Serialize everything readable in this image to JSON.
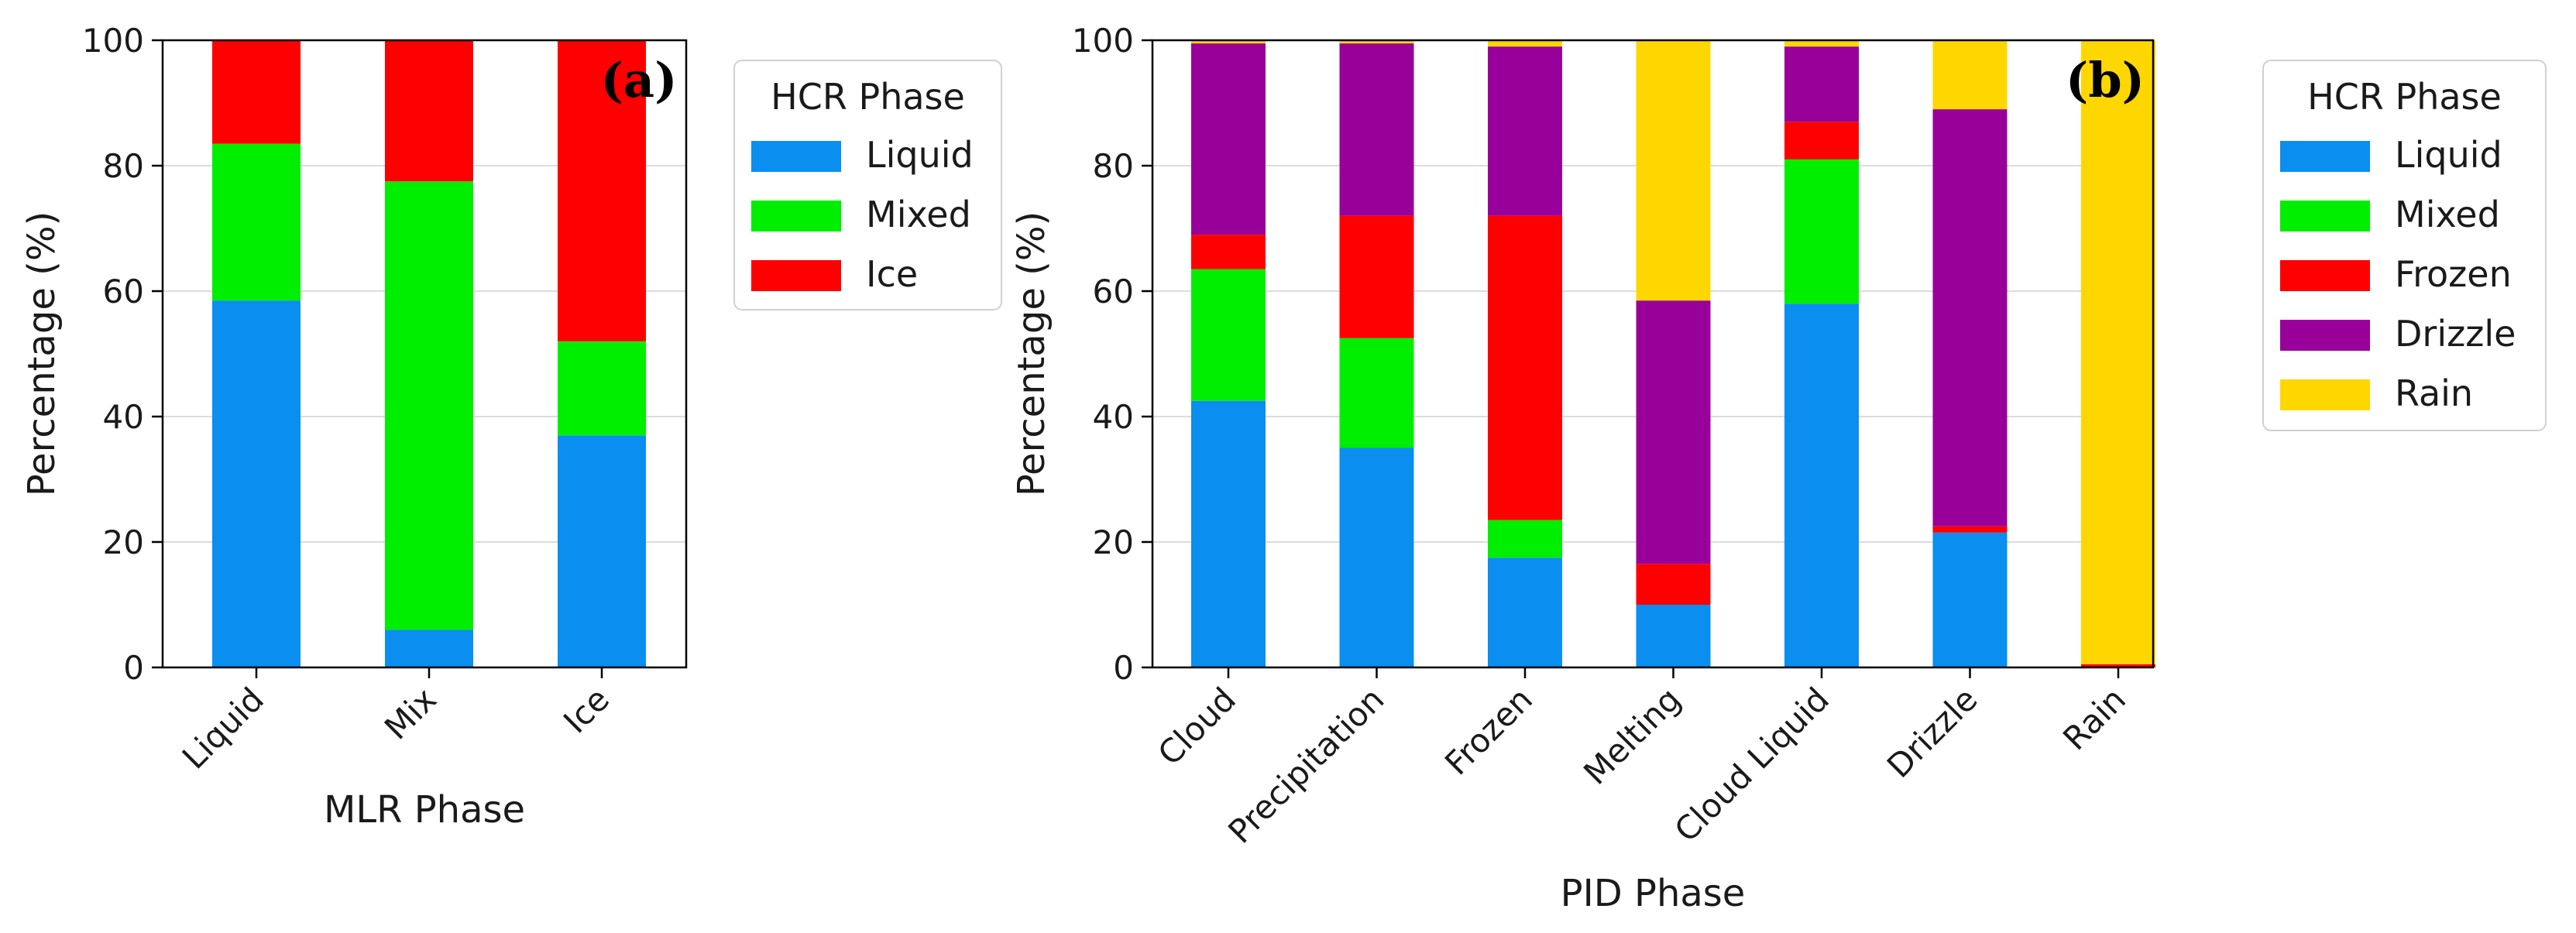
{
  "chart_data": [
    {
      "type": "bar",
      "stacked": true,
      "panel_label": "(a)",
      "xlabel": "MLR Phase",
      "ylabel": "Percentage (%)",
      "ylim": [
        0,
        100
      ],
      "yticks": [
        0,
        20,
        40,
        60,
        80,
        100
      ],
      "grid": "y",
      "categories": [
        "Liquid",
        "Mix",
        "Ice"
      ],
      "legend": {
        "title": "HCR Phase",
        "placement": "outside-right"
      },
      "series": [
        {
          "name": "Liquid",
          "color": "#0a8ef0",
          "values": [
            58.5,
            6.0,
            37.0
          ]
        },
        {
          "name": "Mixed",
          "color": "#00ee00",
          "values": [
            25.0,
            71.5,
            15.0
          ]
        },
        {
          "name": "Ice",
          "color": "#ff0000",
          "values": [
            16.5,
            22.5,
            48.0
          ]
        }
      ]
    },
    {
      "type": "bar",
      "stacked": true,
      "panel_label": "(b)",
      "xlabel": "PID Phase",
      "ylabel": "Percentage (%)",
      "ylim": [
        0,
        100
      ],
      "yticks": [
        0,
        20,
        40,
        60,
        80,
        100
      ],
      "grid": "y",
      "categories": [
        "Cloud",
        "Precipitation",
        "Frozen",
        "Melting",
        "Cloud Liquid",
        "Drizzle",
        "Rain"
      ],
      "legend": {
        "title": "HCR Phase",
        "placement": "outside-right"
      },
      "series": [
        {
          "name": "Liquid",
          "color": "#0a8ef0",
          "values": [
            42.5,
            35.0,
            17.5,
            10.0,
            58.0,
            21.5,
            0.0
          ]
        },
        {
          "name": "Mixed",
          "color": "#00ee00",
          "values": [
            21.0,
            17.5,
            6.0,
            0.0,
            23.0,
            0.0,
            0.0
          ]
        },
        {
          "name": "Frozen",
          "color": "#ff0000",
          "values": [
            5.5,
            19.5,
            48.5,
            6.5,
            6.0,
            1.0,
            0.5
          ]
        },
        {
          "name": "Drizzle",
          "color": "#990099",
          "values": [
            30.5,
            27.5,
            27.0,
            42.0,
            12.0,
            66.5,
            0.0
          ]
        },
        {
          "name": "Rain",
          "color": "#ffd700",
          "values": [
            0.5,
            0.5,
            1.0,
            41.5,
            1.0,
            11.0,
            99.5
          ]
        }
      ]
    }
  ]
}
